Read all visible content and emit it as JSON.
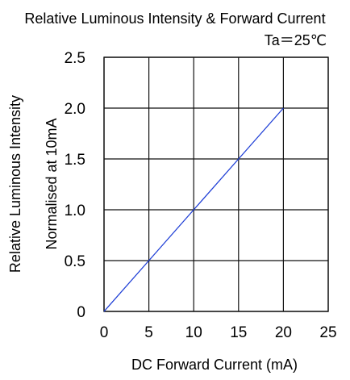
{
  "chart_data": {
    "type": "line",
    "title": "Relative Luminous Intensity & Forward Current",
    "annotation": "Ta＝25℃",
    "xlabel": "DC Forward Current (mA)",
    "ylabel_lines": [
      "Relative Luminous Intensity",
      "Normalised at 10mA"
    ],
    "xlim": [
      0,
      25
    ],
    "ylim": [
      0,
      2.5
    ],
    "x_ticks": [
      "0",
      "5",
      "10",
      "15",
      "20",
      "25"
    ],
    "y_ticks": [
      "0",
      "0.5",
      "1.0",
      "1.5",
      "2.0",
      "2.5"
    ],
    "grid": true,
    "series": [
      {
        "x": [
          0,
          5,
          10,
          15,
          20
        ],
        "y": [
          0,
          0.5,
          1.0,
          1.5,
          2.0
        ],
        "color": "#1f3fd6"
      }
    ]
  }
}
